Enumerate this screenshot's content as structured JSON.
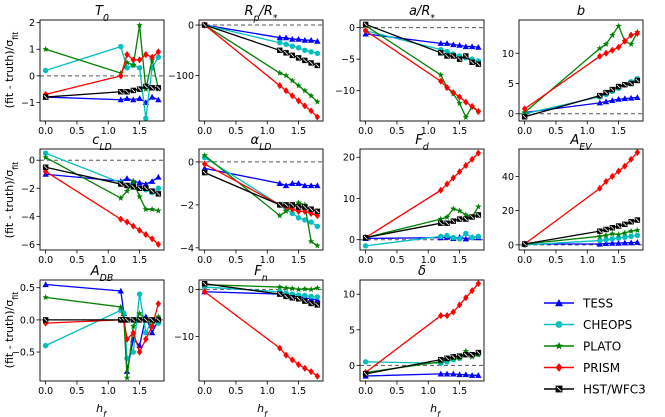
{
  "figure": {
    "ylabel": "(fit - truth)/σ_fit",
    "xlabel": "h_f"
  },
  "legend": [
    {
      "name": "TESS",
      "color": "#0000ff",
      "marker": "triangle"
    },
    {
      "name": "CHEOPS",
      "color": "#00bfbf",
      "marker": "circle"
    },
    {
      "name": "PLATO",
      "color": "#008000",
      "marker": "star"
    },
    {
      "name": "PRISM",
      "color": "#ff0000",
      "marker": "diamond"
    },
    {
      "name": "HST/WFC3",
      "color": "#000000",
      "marker": "x-square"
    }
  ],
  "chart_data": [
    {
      "type": "line",
      "title": "T_0",
      "x": [
        0.0,
        1.2,
        1.3,
        1.4,
        1.5,
        1.6,
        1.7,
        1.8
      ],
      "xticks": [
        0.0,
        0.5,
        1.0,
        1.5
      ],
      "ylim": [
        -1.7,
        2.1
      ],
      "yticks": [
        -1,
        0,
        1,
        2
      ],
      "series": [
        {
          "name": "TESS",
          "values": [
            -0.8,
            -0.9,
            -0.85,
            -0.9,
            -0.85,
            -1.0,
            -0.8,
            -0.9
          ]
        },
        {
          "name": "CHEOPS",
          "values": [
            0.2,
            1.1,
            0.3,
            0.4,
            0.3,
            -1.6,
            0.3,
            0.7
          ]
        },
        {
          "name": "PLATO",
          "values": [
            1.0,
            0.1,
            0.5,
            0.4,
            1.9,
            -0.5,
            0.6,
            -0.5
          ]
        },
        {
          "name": "PRISM",
          "values": [
            -0.7,
            0.0,
            0.8,
            0.6,
            0.6,
            0.8,
            0.7,
            0.9
          ]
        },
        {
          "name": "HST/WFC3",
          "values": [
            -0.8,
            -0.6,
            -0.6,
            -0.55,
            -0.5,
            -0.4,
            -0.45,
            -0.45
          ]
        }
      ]
    },
    {
      "type": "line",
      "title": "R_p/R_*",
      "x": [
        0.0,
        1.2,
        1.3,
        1.4,
        1.5,
        1.6,
        1.7,
        1.8
      ],
      "xticks": [
        0.0,
        0.5,
        1.0,
        1.5
      ],
      "ylim": [
        -190,
        10
      ],
      "yticks": [
        -100,
        0
      ],
      "series": [
        {
          "name": "TESS",
          "values": [
            0,
            -25,
            -25,
            -28,
            -28,
            -30,
            -30,
            -32
          ]
        },
        {
          "name": "CHEOPS",
          "values": [
            0,
            -35,
            -38,
            -42,
            -45,
            -50,
            -53,
            -56
          ]
        },
        {
          "name": "PLATO",
          "values": [
            0,
            -95,
            -100,
            -110,
            -120,
            -130,
            -140,
            -152
          ]
        },
        {
          "name": "PRISM",
          "values": [
            0,
            -120,
            -130,
            -140,
            -150,
            -160,
            -170,
            -182
          ]
        },
        {
          "name": "HST/WFC3",
          "values": [
            0,
            -50,
            -55,
            -60,
            -65,
            -70,
            -75,
            -80
          ]
        }
      ]
    },
    {
      "type": "line",
      "title": "a/R_*",
      "x": [
        0.0,
        1.2,
        1.3,
        1.4,
        1.5,
        1.6,
        1.7,
        1.8
      ],
      "xticks": [
        0.0,
        0.5,
        1.0,
        1.5
      ],
      "ylim": [
        -14.8,
        1.2
      ],
      "yticks": [
        -10,
        -5,
        0
      ],
      "series": [
        {
          "name": "TESS",
          "values": [
            -1.0,
            -2.5,
            -2.5,
            -2.7,
            -2.8,
            -3.0,
            -3.0,
            -3.1
          ]
        },
        {
          "name": "CHEOPS",
          "values": [
            -0.5,
            -3.5,
            -3.8,
            -4.2,
            -4.5,
            -4.8,
            -5.0,
            -5.3
          ]
        },
        {
          "name": "PLATO",
          "values": [
            0.3,
            -7.5,
            -9.5,
            -10.5,
            -12.0,
            -14.2,
            -12.5,
            -13.2
          ]
        },
        {
          "name": "PRISM",
          "values": [
            -0.5,
            -8.5,
            -9.5,
            -10.3,
            -11.0,
            -11.8,
            -12.5,
            -13.3
          ]
        },
        {
          "name": "HST/WFC3",
          "values": [
            0.5,
            -4.0,
            -4.5,
            -4.5,
            -5.0,
            -4.5,
            -5.5,
            -5.8
          ]
        }
      ]
    },
    {
      "type": "line",
      "title": "b",
      "x": [
        0.0,
        1.2,
        1.3,
        1.4,
        1.5,
        1.6,
        1.7,
        1.8
      ],
      "xticks": [
        0.0,
        0.5,
        1.0,
        1.5
      ],
      "ylim": [
        -1.2,
        15.5
      ],
      "yticks": [
        0,
        5,
        10
      ],
      "series": [
        {
          "name": "TESS",
          "values": [
            0.2,
            1.8,
            2.0,
            2.2,
            2.4,
            2.5,
            2.6,
            2.7
          ]
        },
        {
          "name": "CHEOPS",
          "values": [
            0.0,
            2.8,
            3.2,
            3.7,
            4.2,
            4.8,
            5.3,
            5.8
          ]
        },
        {
          "name": "PLATO",
          "values": [
            0.2,
            10.8,
            11.5,
            13.0,
            14.5,
            12.0,
            11.5,
            13.5
          ]
        },
        {
          "name": "PRISM",
          "values": [
            0.8,
            9.5,
            10.0,
            10.5,
            11.0,
            12.0,
            13.0,
            13.3
          ]
        },
        {
          "name": "HST/WFC3",
          "values": [
            -0.5,
            3.0,
            3.5,
            4.0,
            4.5,
            4.8,
            5.0,
            5.5
          ]
        }
      ]
    },
    {
      "type": "line",
      "title": "c_LD",
      "x": [
        0.0,
        1.2,
        1.3,
        1.4,
        1.5,
        1.6,
        1.7,
        1.8
      ],
      "xticks": [
        0.0,
        0.5,
        1.0,
        1.5
      ],
      "ylim": [
        -6.4,
        0.8
      ],
      "yticks": [
        -6,
        -4,
        -2,
        0
      ],
      "series": [
        {
          "name": "TESS",
          "values": [
            -1.0,
            -1.5,
            -1.3,
            -1.5,
            -1.6,
            -1.7,
            -1.5,
            -1.2
          ]
        },
        {
          "name": "CHEOPS",
          "values": [
            0.5,
            -1.6,
            -1.8,
            -1.9,
            -2.0,
            -2.1,
            -2.3,
            -2.0
          ]
        },
        {
          "name": "PLATO",
          "values": [
            0.2,
            -2.7,
            -2.2,
            -1.5,
            -2.6,
            -3.5,
            -3.5,
            -3.6
          ]
        },
        {
          "name": "PRISM",
          "values": [
            -0.8,
            -4.2,
            -4.4,
            -4.7,
            -5.0,
            -5.3,
            -5.6,
            -6.0
          ]
        },
        {
          "name": "HST/WFC3",
          "values": [
            -0.5,
            -1.7,
            -1.8,
            -1.9,
            -2.0,
            -2.0,
            -2.2,
            -2.4
          ]
        }
      ]
    },
    {
      "type": "line",
      "title": "α_LD",
      "x": [
        0.0,
        1.2,
        1.3,
        1.4,
        1.5,
        1.6,
        1.7,
        1.8
      ],
      "xticks": [
        0.0,
        0.5,
        1.0,
        1.5
      ],
      "ylim": [
        -4.1,
        0.6
      ],
      "yticks": [
        -4,
        -2,
        0
      ],
      "series": [
        {
          "name": "TESS",
          "values": [
            -0.3,
            -1.0,
            -1.1,
            -1.0,
            -1.0,
            -1.1,
            -1.1,
            -1.1
          ]
        },
        {
          "name": "CHEOPS",
          "values": [
            0.2,
            -2.0,
            -2.2,
            -2.4,
            -2.6,
            -2.7,
            -2.8,
            -3.0
          ]
        },
        {
          "name": "PLATO",
          "values": [
            0.3,
            -2.5,
            -2.3,
            -2.1,
            -1.9,
            -2.0,
            -3.7,
            -3.9
          ]
        },
        {
          "name": "PRISM",
          "values": [
            -0.1,
            -2.0,
            -2.1,
            -2.2,
            -2.3,
            -2.3,
            -2.4,
            -2.5
          ]
        },
        {
          "name": "HST/WFC3",
          "values": [
            -0.5,
            -2.0,
            -2.0,
            -2.0,
            -2.1,
            -2.1,
            -2.2,
            -2.3
          ]
        }
      ]
    },
    {
      "type": "line",
      "title": "F_d",
      "x": [
        0.0,
        1.2,
        1.3,
        1.4,
        1.5,
        1.6,
        1.7,
        1.8
      ],
      "xticks": [
        0.0,
        0.5,
        1.0,
        1.5
      ],
      "ylim": [
        -2.5,
        22
      ],
      "yticks": [
        0,
        10,
        20
      ],
      "series": [
        {
          "name": "TESS",
          "values": [
            0.3,
            0.5,
            0.6,
            0.3,
            0.6,
            0.2,
            0.6,
            0.5
          ]
        },
        {
          "name": "CHEOPS",
          "values": [
            -1.5,
            0.8,
            1.0,
            0.5,
            0.2,
            1.5,
            0.5,
            0.8
          ]
        },
        {
          "name": "PLATO",
          "values": [
            0.5,
            5.0,
            5.5,
            7.5,
            7.0,
            6.0,
            5.5,
            8.0
          ]
        },
        {
          "name": "PRISM",
          "values": [
            0.5,
            12.0,
            13.5,
            15.0,
            16.5,
            18.0,
            19.5,
            21.0
          ]
        },
        {
          "name": "HST/WFC3",
          "values": [
            0.5,
            4.0,
            4.0,
            4.5,
            5.0,
            5.0,
            5.5,
            6.0
          ]
        }
      ]
    },
    {
      "type": "line",
      "title": "A_EV",
      "x": [
        0.0,
        1.2,
        1.3,
        1.4,
        1.5,
        1.6,
        1.7,
        1.8
      ],
      "xticks": [
        0.0,
        0.5,
        1.0,
        1.5
      ],
      "ylim": [
        -3,
        56
      ],
      "yticks": [
        0,
        20,
        40
      ],
      "series": [
        {
          "name": "TESS",
          "values": [
            0.5,
            0.5,
            0.8,
            1.0,
            1.0,
            1.2,
            1.3,
            1.5
          ]
        },
        {
          "name": "CHEOPS",
          "values": [
            0.0,
            2.5,
            3.0,
            3.5,
            4.0,
            4.5,
            5.0,
            5.5
          ]
        },
        {
          "name": "PLATO",
          "values": [
            0.5,
            5.0,
            5.5,
            6.5,
            6.0,
            7.0,
            8.0,
            8.5
          ]
        },
        {
          "name": "PRISM",
          "values": [
            0.5,
            33.0,
            37.0,
            40.0,
            43.0,
            46.0,
            50.0,
            54.0
          ]
        },
        {
          "name": "HST/WFC3",
          "values": [
            0.5,
            8.0,
            9.0,
            10.0,
            11.0,
            12.0,
            13.5,
            14.5
          ]
        }
      ]
    },
    {
      "type": "line",
      "title": "A_DB",
      "x": [
        0.0,
        1.2,
        1.25,
        1.3,
        1.4,
        1.5,
        1.6,
        1.7,
        1.8
      ],
      "xticks": [
        0.0,
        0.5,
        1.0,
        1.5
      ],
      "ylim": [
        -0.95,
        0.62
      ],
      "yticks": [
        -0.5,
        0.0,
        0.5
      ],
      "series": [
        {
          "name": "TESS",
          "values": [
            0.55,
            0.45,
            0.1,
            -0.8,
            -0.3,
            -0.4,
            0.05,
            -0.2,
            0.0
          ]
        },
        {
          "name": "CHEOPS",
          "values": [
            -0.4,
            0.15,
            0.1,
            -0.6,
            -0.5,
            0.4,
            -0.2,
            0.0,
            -0.05
          ]
        },
        {
          "name": "PLATO",
          "values": [
            0.35,
            0.2,
            0.0,
            -0.9,
            -0.1,
            0.1,
            0.0,
            -0.1,
            0.05
          ]
        },
        {
          "name": "PRISM",
          "values": [
            -0.05,
            0.0,
            0.0,
            -0.3,
            -0.2,
            -0.5,
            -0.3,
            -0.1,
            0.25
          ]
        },
        {
          "name": "HST/WFC3",
          "values": [
            0.0,
            0.0,
            0.0,
            0.0,
            0.0,
            0.0,
            0.0,
            0.0,
            0.0
          ]
        }
      ]
    },
    {
      "type": "line",
      "title": "F_n",
      "x": [
        0.0,
        1.2,
        1.3,
        1.4,
        1.5,
        1.6,
        1.7,
        1.8
      ],
      "xticks": [
        0.0,
        0.5,
        1.0,
        1.5
      ],
      "ylim": [
        -19.5,
        2
      ],
      "yticks": [
        -10,
        0
      ],
      "series": [
        {
          "name": "TESS",
          "values": [
            -0.5,
            -1.0,
            -1.2,
            -1.5,
            -1.5,
            -1.8,
            -2.0,
            -2.2
          ]
        },
        {
          "name": "CHEOPS",
          "values": [
            0.5,
            -0.5,
            -0.8,
            -1.0,
            -1.2,
            -1.3,
            -1.5,
            -1.6
          ]
        },
        {
          "name": "PLATO",
          "values": [
            1.0,
            0.5,
            0.3,
            0.2,
            0.0,
            0.1,
            0.0,
            0.3
          ]
        },
        {
          "name": "PRISM",
          "values": [
            -0.5,
            -12.5,
            -14.0,
            -15.0,
            -16.0,
            -16.8,
            -17.5,
            -18.5
          ]
        },
        {
          "name": "HST/WFC3",
          "values": [
            1.2,
            -1.0,
            -1.5,
            -1.8,
            -2.0,
            -2.5,
            -3.0,
            -3.3
          ]
        }
      ]
    },
    {
      "type": "line",
      "title": "δ",
      "x": [
        0.0,
        1.2,
        1.3,
        1.4,
        1.5,
        1.6,
        1.7,
        1.8
      ],
      "xticks": [
        0.0,
        0.5,
        1.0,
        1.5
      ],
      "ylim": [
        -2.2,
        12
      ],
      "yticks": [
        0,
        5,
        10
      ],
      "series": [
        {
          "name": "TESS",
          "values": [
            -1.5,
            -1.2,
            -1.2,
            -1.2,
            -1.3,
            -1.3,
            -1.4,
            -1.4
          ]
        },
        {
          "name": "CHEOPS",
          "values": [
            0.5,
            0.3,
            0.5,
            0.8,
            1.0,
            1.5,
            1.5,
            1.6
          ]
        },
        {
          "name": "PLATO",
          "values": [
            -1.0,
            0.5,
            0.8,
            1.0,
            1.0,
            2.0,
            1.2,
            1.5
          ]
        },
        {
          "name": "PRISM",
          "values": [
            -1.0,
            7.0,
            7.0,
            7.5,
            8.5,
            9.5,
            10.5,
            11.5
          ]
        },
        {
          "name": "HST/WFC3",
          "values": [
            -1.2,
            0.8,
            1.0,
            1.2,
            1.3,
            1.5,
            1.5,
            1.8
          ]
        }
      ]
    }
  ]
}
